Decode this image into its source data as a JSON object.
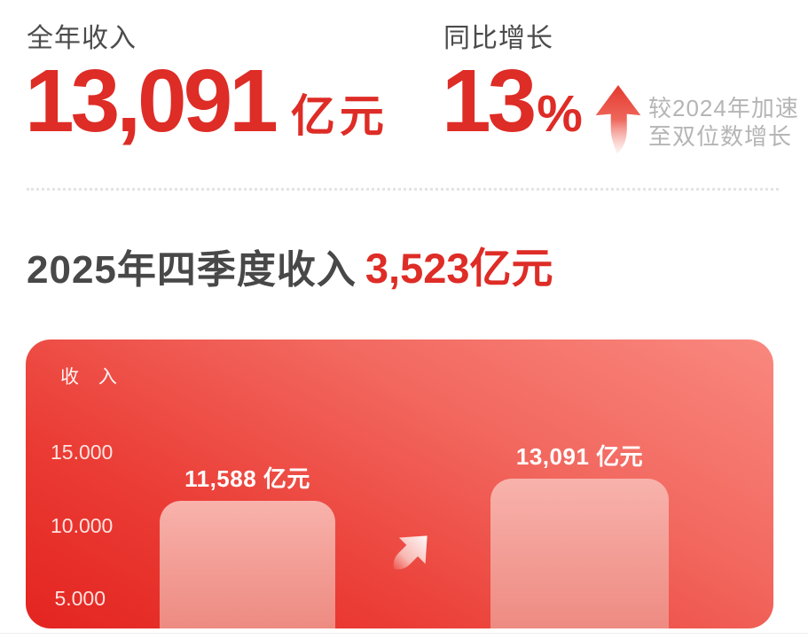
{
  "header": {
    "kpi_left": {
      "label": "全年收入",
      "value": "13,091",
      "unit": "亿元"
    },
    "kpi_right": {
      "label": "同比增长",
      "value": "13",
      "unit": "%",
      "trend_icon": "up-arrow",
      "note_lines": [
        "较2024年加速",
        "至双位数增长"
      ]
    }
  },
  "section": {
    "title_prefix": "2025年四季度收入",
    "title_value": "3,523亿元"
  },
  "chart_data": {
    "type": "bar",
    "ylabel": "收 入",
    "values": [
      11588,
      13091
    ],
    "bar_labels": [
      "11,588 亿元",
      "13,091 亿元"
    ],
    "y_ticks": [
      {
        "label": "15.000",
        "value": 15000
      },
      {
        "label": "10.000",
        "value": 10000
      },
      {
        "label": "5.000",
        "value": 5000
      }
    ],
    "ylim": [
      0,
      20000
    ],
    "grid": false,
    "legend": "none",
    "trend_icon": "growth-arrow"
  },
  "colors": {
    "accent_red": "#de2c26",
    "heading_gray": "#4b4b4b",
    "note_gray": "#b5b5b5",
    "panel_gradient_top": "#f9887f",
    "panel_gradient_bottom": "#e42420",
    "bar_gradient_top": "#f8b3ac",
    "bar_gradient_bottom": "#ee8b82"
  }
}
